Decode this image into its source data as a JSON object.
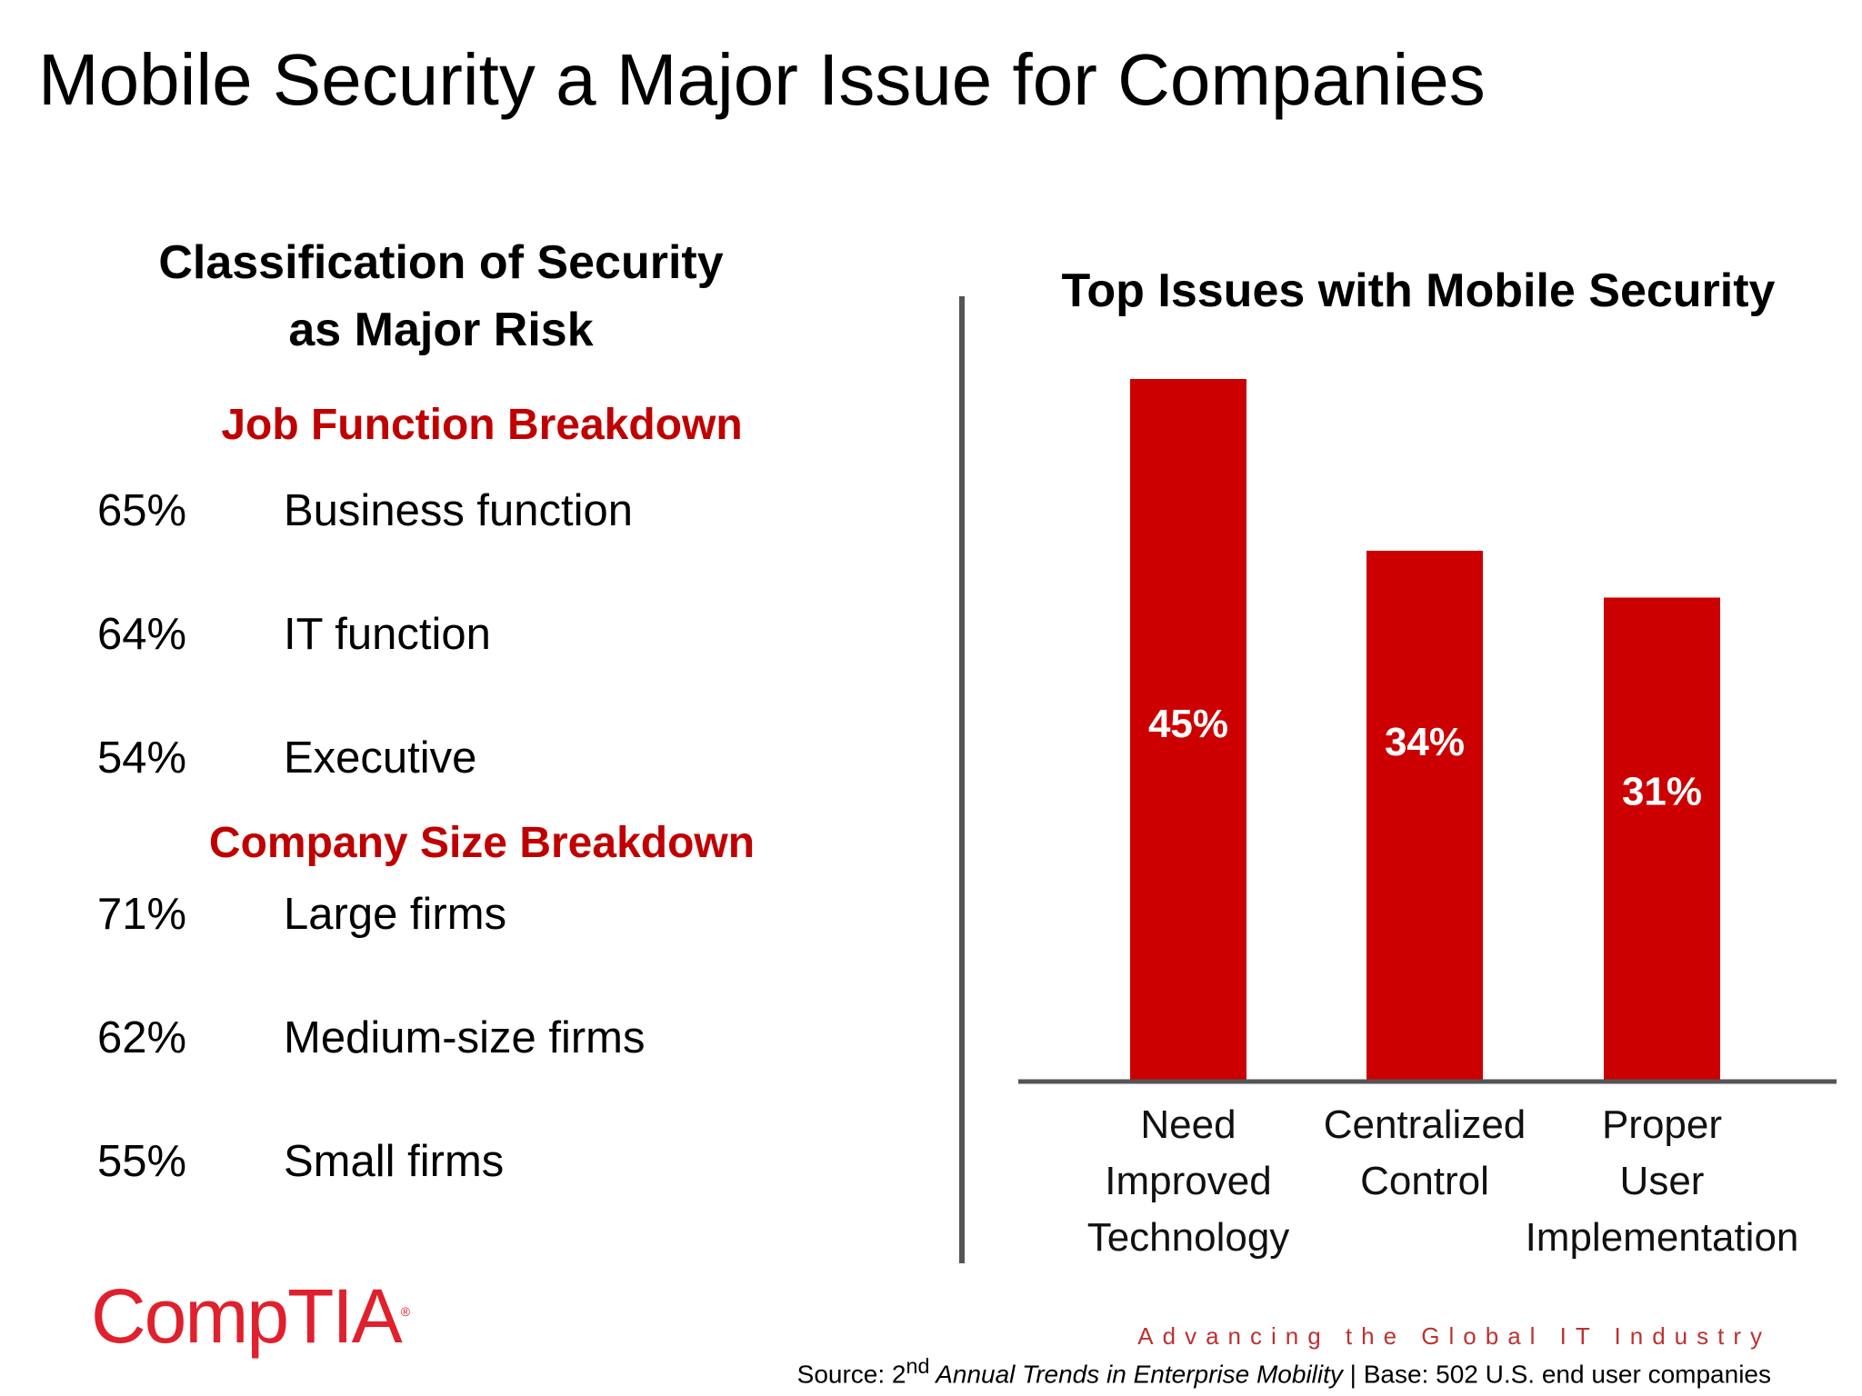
{
  "slide": {
    "title": "Mobile Security a Major Issue for Companies"
  },
  "left_panel": {
    "heading_line1": "Classification of Security",
    "heading_line2": "as Major Risk",
    "job_function": {
      "heading": "Job Function Breakdown",
      "rows": [
        {
          "pct": "65%",
          "label": "Business function"
        },
        {
          "pct": "64%",
          "label": "IT function"
        },
        {
          "pct": "54%",
          "label": "Executive"
        }
      ]
    },
    "company_size": {
      "heading": "Company Size Breakdown",
      "rows": [
        {
          "pct": "71%",
          "label": "Large firms"
        },
        {
          "pct": "62%",
          "label": "Medium-size firms"
        },
        {
          "pct": "55%",
          "label": "Small firms"
        }
      ]
    }
  },
  "chart_data": {
    "type": "bar",
    "title": "Top Issues with Mobile Security",
    "categories": [
      [
        "Need",
        "Improved",
        "Technology"
      ],
      [
        "Centralized",
        "Control"
      ],
      [
        "Proper",
        "User",
        "Implementation"
      ]
    ],
    "values": [
      45,
      34,
      31
    ],
    "value_labels": [
      "45%",
      "34%",
      "31%"
    ],
    "unit": "%",
    "ylim": [
      0,
      45
    ],
    "grid": false,
    "legend": "none",
    "bar_color": "#cc0000"
  },
  "footer": {
    "logo_text": "CompTIA",
    "logo_mark": "®",
    "tagline": "Advancing the Global IT Industry",
    "source_prefix": "Source: 2",
    "source_sup": "nd",
    "source_title": " Annual Trends in Enterprise Mobility",
    "source_suffix": " | Base: 502 U.S. end user companies"
  }
}
